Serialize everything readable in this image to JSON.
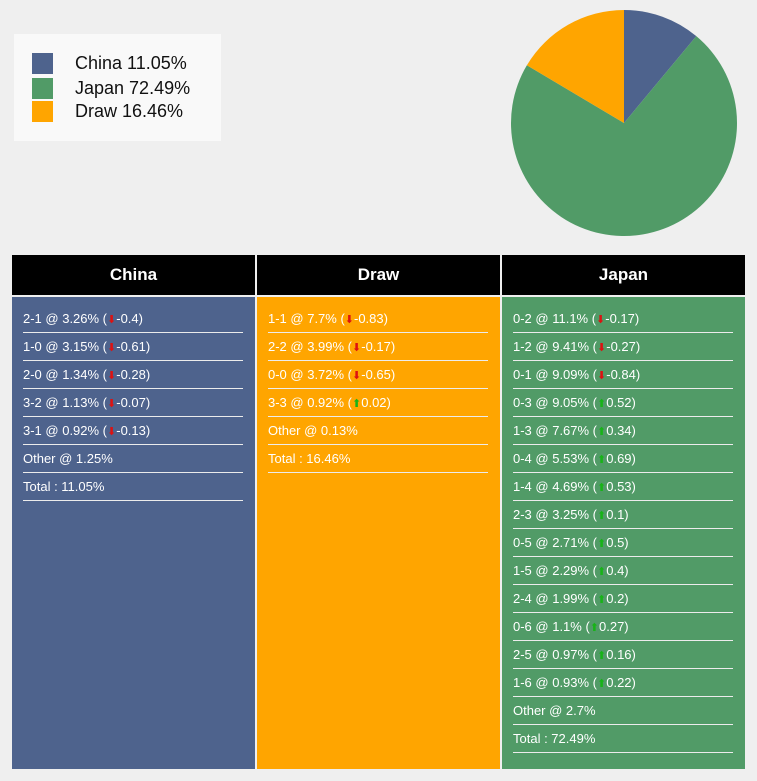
{
  "legend": [
    {
      "label": "China 11.05%",
      "color": "#4e638d"
    },
    {
      "label": "Japan 72.49%",
      "color": "#519b67"
    },
    {
      "label": "Draw 16.46%",
      "color": "#ffa500"
    }
  ],
  "chart_data": {
    "type": "pie",
    "slices": [
      {
        "name": "China",
        "value": 11.05,
        "color": "#4e638d"
      },
      {
        "name": "Japan",
        "value": 72.49,
        "color": "#519b67"
      },
      {
        "name": "Draw",
        "value": 16.46,
        "color": "#ffa500"
      }
    ]
  },
  "columns": [
    {
      "title": "China",
      "bg": "#4e638d",
      "rows": [
        {
          "text": "2-1 @ 3.26% (",
          "dir": "down",
          "change": "-0.4)"
        },
        {
          "text": "1-0 @ 3.15% (",
          "dir": "down",
          "change": "-0.61)"
        },
        {
          "text": "2-0 @ 1.34% (",
          "dir": "down",
          "change": "-0.28)"
        },
        {
          "text": "3-2 @ 1.13% (",
          "dir": "down",
          "change": "-0.07)"
        },
        {
          "text": "3-1 @ 0.92% (",
          "dir": "down",
          "change": "-0.13)"
        },
        {
          "text": "Other @ 1.25%"
        },
        {
          "text": "Total : 11.05%"
        }
      ]
    },
    {
      "title": "Draw",
      "bg": "#ffa500",
      "rows": [
        {
          "text": "1-1 @ 7.7% (",
          "dir": "down",
          "change": "-0.83)"
        },
        {
          "text": "2-2 @ 3.99% (",
          "dir": "down",
          "change": "-0.17)"
        },
        {
          "text": "0-0 @ 3.72% (",
          "dir": "down",
          "change": "-0.65)"
        },
        {
          "text": "3-3 @ 0.92% (",
          "dir": "up",
          "change": "0.02)"
        },
        {
          "text": "Other @ 0.13%"
        },
        {
          "text": "Total : 16.46%"
        }
      ]
    },
    {
      "title": "Japan",
      "bg": "#519b67",
      "rows": [
        {
          "text": "0-2 @ 11.1% (",
          "dir": "down",
          "change": "-0.17)"
        },
        {
          "text": "1-2 @ 9.41% (",
          "dir": "down",
          "change": "-0.27)"
        },
        {
          "text": "0-1 @ 9.09% (",
          "dir": "down",
          "change": "-0.84)"
        },
        {
          "text": "0-3 @ 9.05% (",
          "dir": "up",
          "change": "0.52)"
        },
        {
          "text": "1-3 @ 7.67% (",
          "dir": "up",
          "change": "0.34)"
        },
        {
          "text": "0-4 @ 5.53% (",
          "dir": "up",
          "change": "0.69)"
        },
        {
          "text": "1-4 @ 4.69% (",
          "dir": "up",
          "change": "0.53)"
        },
        {
          "text": "2-3 @ 3.25% (",
          "dir": "up",
          "change": "0.1)"
        },
        {
          "text": "0-5 @ 2.71% (",
          "dir": "up",
          "change": "0.5)"
        },
        {
          "text": "1-5 @ 2.29% (",
          "dir": "up",
          "change": "0.4)"
        },
        {
          "text": "2-4 @ 1.99% (",
          "dir": "up",
          "change": "0.2)"
        },
        {
          "text": "0-6 @ 1.1% (",
          "dir": "up",
          "change": "0.27)"
        },
        {
          "text": "2-5 @ 0.97% (",
          "dir": "up",
          "change": "0.16)"
        },
        {
          "text": "1-6 @ 0.93% (",
          "dir": "up",
          "change": "0.22)"
        },
        {
          "text": "Other @ 2.7%"
        },
        {
          "text": "Total : 72.49%"
        }
      ]
    }
  ]
}
